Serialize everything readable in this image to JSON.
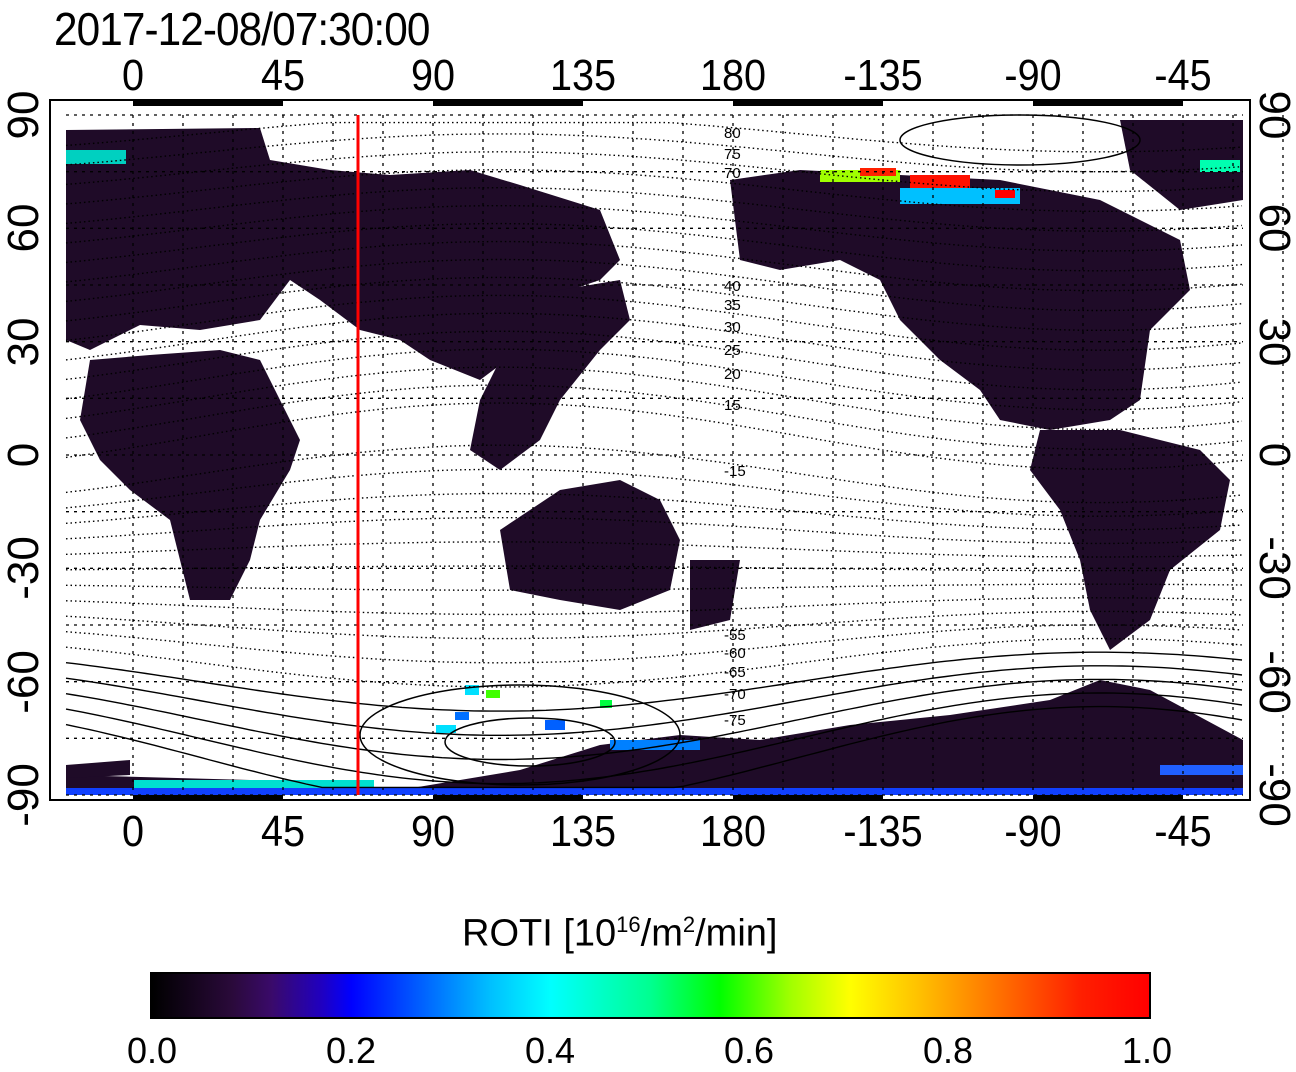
{
  "title": "2017-12-08/07:30:00",
  "x_ticks": [
    "0",
    "45",
    "90",
    "135",
    "180",
    "-135",
    "-90",
    "-45"
  ],
  "y_ticks": [
    "90",
    "60",
    "30",
    "0",
    "-30",
    "-60",
    "-90"
  ],
  "contour_labels": [
    "80",
    "75",
    "70",
    "40",
    "35",
    "30",
    "25",
    "20",
    "15",
    "-15",
    "-55",
    "-60",
    "-65",
    "-70",
    "-75"
  ],
  "colorbar": {
    "label_main": "ROTI  [10",
    "label_sup": "16",
    "label_mid": "/m",
    "label_sup2": "2",
    "label_end": "/min]",
    "ticks": [
      "0.0",
      "0.2",
      "0.4",
      "0.6",
      "0.8",
      "1.0"
    ],
    "range": [
      0.0,
      1.0
    ]
  },
  "marker_longitude": 67.5,
  "colors": {
    "land_low": "#1e0b26",
    "marker": "#ff0000"
  }
}
